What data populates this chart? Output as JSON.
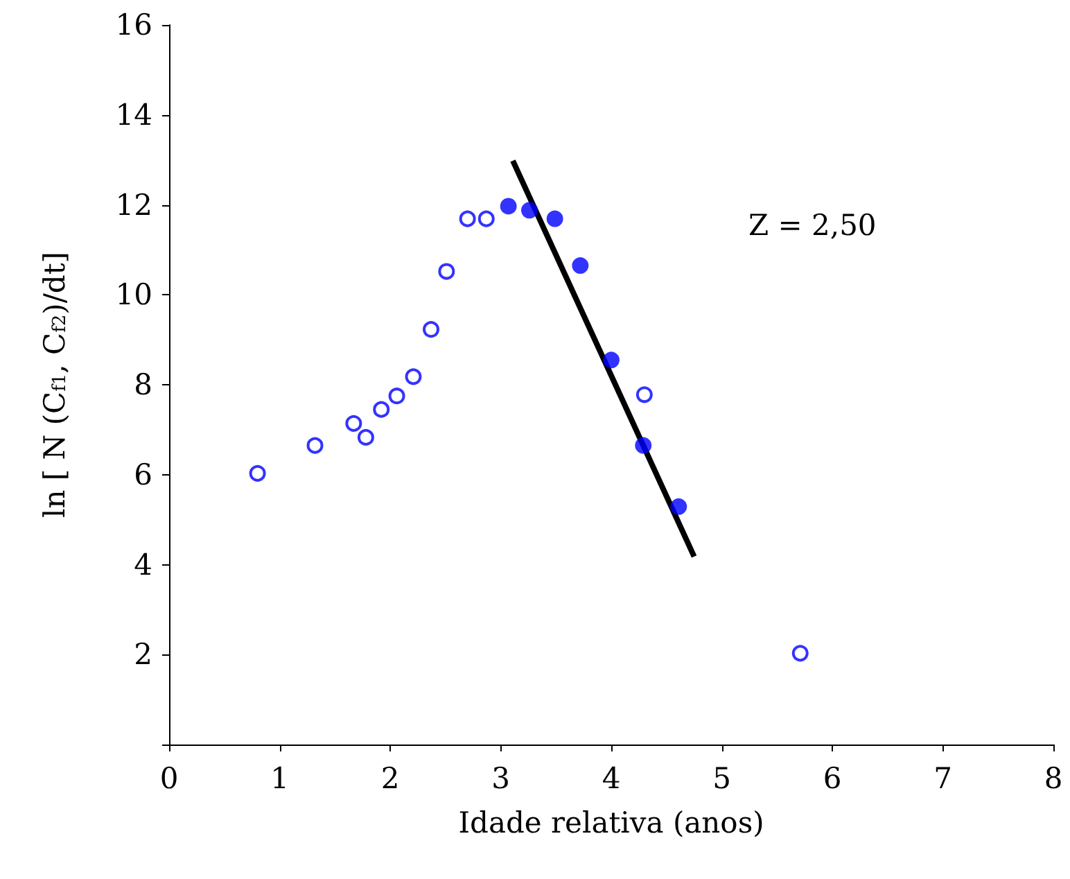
{
  "chart_data": {
    "type": "scatter",
    "xlabel": "Idade relativa (anos)",
    "ylabel": "ln [ N (C$_{f1}$, C$_{f2}$)/dt]",
    "xlim": [
      0,
      8
    ],
    "xticks": [
      0,
      1,
      2,
      3,
      4,
      5,
      6,
      7,
      8
    ],
    "ylim": [
      0,
      16
    ],
    "yticks": [
      {
        "value": 0,
        "label": null
      },
      2,
      4,
      6,
      8,
      10,
      12,
      14,
      16
    ],
    "grid": false,
    "marker": "circle",
    "annotations": [
      "Z = 2,50"
    ],
    "series": [
      {
        "color": "#0000ff",
        "x": [
          0.8,
          1.32,
          1.67,
          1.78,
          1.92,
          2.06,
          2.21,
          2.37,
          2.51,
          2.7,
          2.87,
          4.3,
          5.71
        ],
        "values": [
          6.03,
          6.65,
          7.14,
          6.83,
          7.45,
          7.75,
          8.18,
          9.23,
          10.52,
          11.69,
          11.69,
          7.78,
          2.03
        ]
      },
      {
        "color": "#0000ff",
        "x": [
          3.07,
          3.26,
          3.49,
          3.72,
          4.0,
          4.29,
          4.61
        ],
        "values": [
          11.97,
          11.88,
          11.69,
          10.65,
          8.55,
          6.65,
          5.29
        ]
      },
      {
        "type": "line",
        "color": "#000000",
        "line_style": "solid",
        "marker": "none",
        "x": [
          3.11,
          4.75
        ],
        "values": [
          12.98,
          4.18
        ]
      }
    ]
  }
}
